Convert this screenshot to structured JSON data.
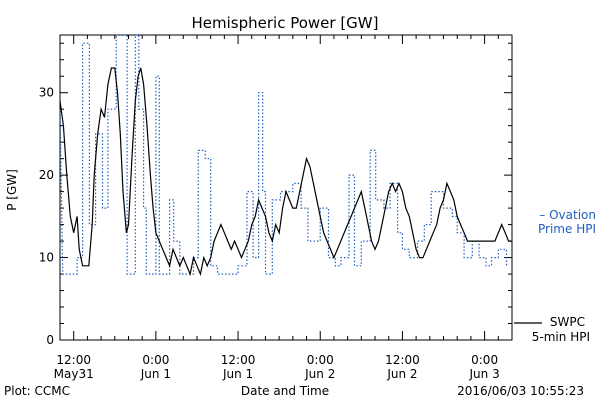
{
  "chart_data": {
    "type": "line",
    "title": "Hemispheric Power [GW]",
    "ylabel": "P [GW]",
    "xlabel": "Date and Time",
    "ylim": [
      0,
      37
    ],
    "xlim_hours": [
      0,
      66
    ],
    "yticks": [
      0,
      10,
      20,
      30
    ],
    "xticks": [
      {
        "hour": 2,
        "time": "12:00",
        "date": "May31"
      },
      {
        "hour": 14,
        "time": "0:00",
        "date": "Jun 1"
      },
      {
        "hour": 26,
        "time": "12:00",
        "date": "Jun 1"
      },
      {
        "hour": 38,
        "time": "0:00",
        "date": "Jun 2"
      },
      {
        "hour": 50,
        "time": "12:00",
        "date": "Jun 2"
      },
      {
        "hour": 62,
        "time": "0:00",
        "date": "Jun 3"
      }
    ],
    "series": [
      {
        "name": "Ovation Prime HPI",
        "style": "dotted",
        "color": "#1f5fbf",
        "legend_line1": "– Ovation",
        "legend_line2": "Prime HPI",
        "points": [
          [
            0,
            28
          ],
          [
            0.4,
            8
          ],
          [
            2.5,
            8
          ],
          [
            2.5,
            10
          ],
          [
            3.3,
            10
          ],
          [
            3.3,
            36
          ],
          [
            4.3,
            36
          ],
          [
            4.3,
            14
          ],
          [
            5.2,
            14
          ],
          [
            5.2,
            25
          ],
          [
            6.2,
            25
          ],
          [
            6.2,
            16
          ],
          [
            7,
            16
          ],
          [
            7,
            28
          ],
          [
            8.2,
            28
          ],
          [
            8.2,
            37
          ],
          [
            9.8,
            37
          ],
          [
            9.8,
            8
          ],
          [
            11,
            8
          ],
          [
            11,
            37
          ],
          [
            11.5,
            37
          ],
          [
            11.5,
            28
          ],
          [
            12.2,
            28
          ],
          [
            12.2,
            16
          ],
          [
            12.6,
            16
          ],
          [
            12.6,
            8
          ],
          [
            14,
            8
          ],
          [
            14,
            32
          ],
          [
            14.5,
            32
          ],
          [
            14.5,
            8
          ],
          [
            16,
            8
          ],
          [
            16,
            17
          ],
          [
            16.6,
            17
          ],
          [
            16.6,
            12
          ],
          [
            17.5,
            12
          ],
          [
            17.5,
            8
          ],
          [
            19.5,
            8
          ],
          [
            19.5,
            10
          ],
          [
            20.2,
            10
          ],
          [
            20.2,
            23
          ],
          [
            21.2,
            23
          ],
          [
            21.2,
            22
          ],
          [
            22,
            22
          ],
          [
            22,
            9
          ],
          [
            23,
            9
          ],
          [
            23,
            8
          ],
          [
            26,
            8
          ],
          [
            26,
            9
          ],
          [
            27.3,
            9
          ],
          [
            27.3,
            18
          ],
          [
            28.2,
            18
          ],
          [
            28.2,
            10
          ],
          [
            29,
            10
          ],
          [
            29,
            30
          ],
          [
            29.6,
            30
          ],
          [
            29.6,
            18
          ],
          [
            30,
            18
          ],
          [
            30,
            8
          ],
          [
            31,
            8
          ],
          [
            31,
            17
          ],
          [
            32.2,
            17
          ],
          [
            32.2,
            18
          ],
          [
            34,
            18
          ],
          [
            34,
            19
          ],
          [
            35.2,
            19
          ],
          [
            35.2,
            16
          ],
          [
            36.2,
            16
          ],
          [
            36.2,
            12
          ],
          [
            38,
            12
          ],
          [
            38,
            16
          ],
          [
            39.2,
            16
          ],
          [
            39.2,
            10
          ],
          [
            40.2,
            10
          ],
          [
            40.2,
            9
          ],
          [
            41,
            9
          ],
          [
            41,
            10
          ],
          [
            42.2,
            10
          ],
          [
            42.2,
            20
          ],
          [
            43,
            20
          ],
          [
            43,
            9
          ],
          [
            44,
            9
          ],
          [
            44,
            12
          ],
          [
            45.3,
            12
          ],
          [
            45.3,
            23
          ],
          [
            46.1,
            23
          ],
          [
            46.1,
            17
          ],
          [
            47.3,
            17
          ],
          [
            47.3,
            16
          ],
          [
            48.2,
            16
          ],
          [
            48.2,
            19
          ],
          [
            49.3,
            19
          ],
          [
            49.3,
            13
          ],
          [
            50,
            13
          ],
          [
            50,
            11
          ],
          [
            51,
            11
          ],
          [
            51,
            10
          ],
          [
            52.2,
            10
          ],
          [
            52.2,
            12
          ],
          [
            53.2,
            12
          ],
          [
            53.2,
            14
          ],
          [
            54.2,
            14
          ],
          [
            54.2,
            18
          ],
          [
            56,
            18
          ],
          [
            56,
            16
          ],
          [
            57.3,
            16
          ],
          [
            57.3,
            15
          ],
          [
            58,
            15
          ],
          [
            58,
            13
          ],
          [
            59,
            13
          ],
          [
            59,
            10
          ],
          [
            60.2,
            10
          ],
          [
            60.2,
            12
          ],
          [
            61.2,
            12
          ],
          [
            61.2,
            10
          ],
          [
            62.2,
            10
          ],
          [
            62.2,
            9
          ],
          [
            63,
            9
          ],
          [
            63,
            10
          ],
          [
            64,
            10
          ],
          [
            64,
            11
          ],
          [
            65.2,
            11
          ],
          [
            65.2,
            9
          ]
        ]
      },
      {
        "name": "SWPC 5-min HPI",
        "style": "solid",
        "color": "#000000",
        "legend_line1": "SWPC",
        "legend_line2": "5-min HPI",
        "points": [
          [
            0,
            29
          ],
          [
            0.5,
            26
          ],
          [
            1,
            20
          ],
          [
            1.5,
            15
          ],
          [
            2,
            13
          ],
          [
            2.5,
            15
          ],
          [
            2.8,
            11
          ],
          [
            3.3,
            9
          ],
          [
            3.8,
            9
          ],
          [
            4.2,
            9
          ],
          [
            4.7,
            14
          ],
          [
            5,
            20
          ],
          [
            5.5,
            25
          ],
          [
            6,
            28
          ],
          [
            6.5,
            27
          ],
          [
            7,
            31
          ],
          [
            7.5,
            33
          ],
          [
            8,
            33
          ],
          [
            8.4,
            30
          ],
          [
            8.8,
            25
          ],
          [
            9.2,
            18
          ],
          [
            9.7,
            13
          ],
          [
            10,
            14
          ],
          [
            10.5,
            22
          ],
          [
            11,
            29
          ],
          [
            11.4,
            32
          ],
          [
            11.8,
            33
          ],
          [
            12.2,
            31
          ],
          [
            12.7,
            26
          ],
          [
            13.2,
            20
          ],
          [
            13.6,
            16
          ],
          [
            14,
            13
          ],
          [
            14.5,
            12
          ],
          [
            15,
            11
          ],
          [
            15.5,
            10
          ],
          [
            16,
            9
          ],
          [
            16.5,
            11
          ],
          [
            17,
            10
          ],
          [
            17.5,
            9
          ],
          [
            18,
            10
          ],
          [
            18.5,
            9
          ],
          [
            19,
            8
          ],
          [
            19.5,
            10
          ],
          [
            20,
            9
          ],
          [
            20.5,
            8
          ],
          [
            21,
            10
          ],
          [
            21.5,
            9
          ],
          [
            22,
            10
          ],
          [
            22.5,
            12
          ],
          [
            23,
            13
          ],
          [
            23.5,
            14
          ],
          [
            24,
            13
          ],
          [
            24.5,
            12
          ],
          [
            25,
            11
          ],
          [
            25.5,
            12
          ],
          [
            26,
            11
          ],
          [
            26.5,
            10
          ],
          [
            27,
            11
          ],
          [
            27.5,
            12
          ],
          [
            28,
            14
          ],
          [
            28.5,
            15
          ],
          [
            29,
            17
          ],
          [
            29.5,
            16
          ],
          [
            30,
            15
          ],
          [
            30.5,
            13
          ],
          [
            31,
            12
          ],
          [
            31.5,
            14
          ],
          [
            32,
            13
          ],
          [
            32.5,
            16
          ],
          [
            33,
            18
          ],
          [
            33.5,
            17
          ],
          [
            34,
            16
          ],
          [
            34.5,
            16
          ],
          [
            35,
            18
          ],
          [
            35.5,
            20
          ],
          [
            36,
            22
          ],
          [
            36.5,
            21
          ],
          [
            37,
            19
          ],
          [
            37.5,
            17
          ],
          [
            38,
            15
          ],
          [
            38.5,
            13
          ],
          [
            39,
            12
          ],
          [
            39.5,
            11
          ],
          [
            40,
            10
          ],
          [
            40.5,
            11
          ],
          [
            41,
            12
          ],
          [
            41.5,
            13
          ],
          [
            42,
            14
          ],
          [
            42.5,
            15
          ],
          [
            43,
            16
          ],
          [
            43.5,
            17
          ],
          [
            44,
            18
          ],
          [
            44.5,
            16
          ],
          [
            45,
            14
          ],
          [
            45.5,
            12
          ],
          [
            46,
            11
          ],
          [
            46.5,
            12
          ],
          [
            47,
            14
          ],
          [
            47.5,
            16
          ],
          [
            48,
            18
          ],
          [
            48.5,
            19
          ],
          [
            49,
            18
          ],
          [
            49.5,
            19
          ],
          [
            50,
            18
          ],
          [
            50.5,
            16
          ],
          [
            51,
            15
          ],
          [
            51.5,
            13
          ],
          [
            52,
            11
          ],
          [
            52.5,
            10
          ],
          [
            53,
            10
          ],
          [
            53.5,
            11
          ],
          [
            54,
            12
          ],
          [
            54.5,
            13
          ],
          [
            55,
            14
          ],
          [
            55.5,
            16
          ],
          [
            56,
            17
          ],
          [
            56.5,
            19
          ],
          [
            57,
            18
          ],
          [
            57.5,
            17
          ],
          [
            58,
            15
          ],
          [
            58.5,
            14
          ],
          [
            59,
            13
          ],
          [
            59.5,
            12
          ],
          [
            60,
            12
          ],
          [
            60.5,
            12
          ],
          [
            61,
            12
          ],
          [
            61.5,
            12
          ],
          [
            62,
            12
          ],
          [
            62.5,
            12
          ],
          [
            63,
            12
          ],
          [
            63.5,
            12
          ],
          [
            64,
            13
          ],
          [
            64.5,
            14
          ],
          [
            65,
            13
          ],
          [
            65.5,
            12
          ],
          [
            66,
            12
          ]
        ]
      }
    ]
  },
  "footer": {
    "left": "Plot: CCMC",
    "right": "2016/06/03 10:55:23"
  }
}
